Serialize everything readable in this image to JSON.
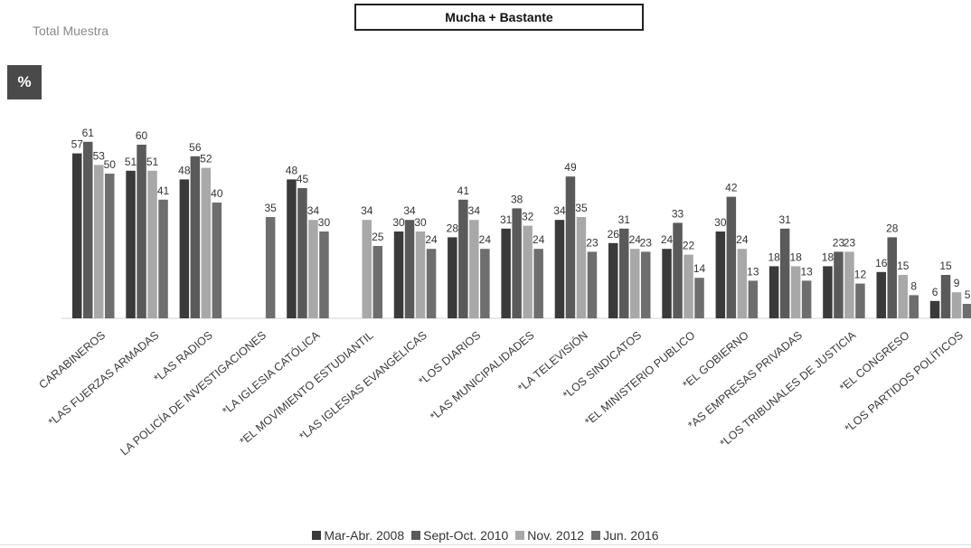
{
  "header": {
    "subtitle": "Total Muestra",
    "title": "Mucha + Bastante",
    "unit_badge": "%"
  },
  "chart_data": {
    "type": "bar",
    "title": "Mucha + Bastante",
    "categories": [
      "CARABINEROS",
      "*LAS FUERZAS ARMADAS",
      "*LAS RADIOS",
      "LA POLICÍA DE  INVESTIGACIONES",
      "*LA IGLESIA CATÓLICA",
      "*EL MOVIMIENTO ESTUDIANTIL",
      "*LAS IGLESIAS EVANGÉLICAS",
      "*LOS DIARIOS",
      "*LAS MUNICIPALIDADES",
      "*LA TELEVISIÓN",
      "*LOS SINDICATOS",
      "*EL MINISTERIO PUBLICO",
      "*EL GOBIERNO",
      "*AS EMPRESAS PRIVADAS",
      "*LOS TRIBUNALES DE JUSTICIA",
      "*EL CONGRESO",
      "*LOS PARTIDOS POLÍTICOS"
    ],
    "series": [
      {
        "name": "Mar-Abr. 2008",
        "color": "#3a3a3a",
        "values": [
          57,
          51,
          48,
          null,
          48,
          null,
          30,
          28,
          31,
          34,
          26,
          24,
          30,
          18,
          18,
          16,
          6
        ]
      },
      {
        "name": "Sept-Oct. 2010",
        "color": "#5a5a5a",
        "values": [
          61,
          60,
          56,
          null,
          45,
          null,
          34,
          41,
          38,
          49,
          31,
          33,
          42,
          31,
          23,
          28,
          15
        ]
      },
      {
        "name": "Nov. 2012",
        "color": "#a8a8a8",
        "values": [
          53,
          51,
          52,
          null,
          34,
          34,
          30,
          34,
          32,
          35,
          24,
          22,
          24,
          18,
          23,
          15,
          9
        ]
      },
      {
        "name": "Jun. 2016",
        "color": "#6e6e6e",
        "values": [
          50,
          41,
          40,
          35,
          30,
          25,
          24,
          24,
          24,
          23,
          23,
          14,
          13,
          13,
          12,
          8,
          5
        ]
      }
    ],
    "ylim": [
      0,
      65
    ],
    "grid": false,
    "legend_position": "bottom"
  }
}
